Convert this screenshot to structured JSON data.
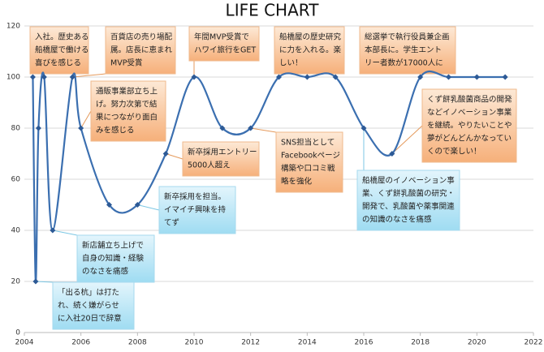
{
  "chart_data": {
    "type": "line",
    "title": "LIFE CHART",
    "x": [
      2004.3,
      2004.4,
      2004.5,
      2004.7,
      2005.0,
      2005.7,
      2006,
      2007,
      2008,
      2009,
      2010,
      2011,
      2012,
      2013,
      2014,
      2015,
      2016,
      2017,
      2018,
      2019,
      2020,
      2021
    ],
    "series": [
      {
        "color": "#3b6fb0",
        "values": [
          100,
          20,
          80,
          100,
          40,
          100,
          80,
          50,
          50,
          70,
          100,
          80,
          80,
          100,
          100,
          100,
          80,
          70,
          100,
          100,
          100,
          100
        ]
      }
    ],
    "xlim": [
      2004,
      2022
    ],
    "xticks": [
      2004,
      2006,
      2008,
      2010,
      2012,
      2014,
      2016,
      2018,
      2020,
      2022
    ],
    "ylim": [
      0,
      120
    ],
    "yticks": [
      0,
      20,
      40,
      60,
      80,
      100,
      120
    ],
    "grid": true,
    "annotations": [
      {
        "lines": [
          "入社。歴史ある",
          "船橋屋で働ける",
          "喜びを感じる"
        ]
      },
      {
        "lines": [
          "百貨店の売り場配",
          "属。店長に恵まれ",
          "MVP受賞"
        ]
      },
      {
        "lines": [
          "年間MVP受賞で",
          "ハワイ旅行をGET"
        ]
      },
      {
        "lines": [
          "船橋屋の歴史研究",
          "に力を入れる。楽",
          "しい！"
        ]
      },
      {
        "lines": [
          "総選挙で執行役員兼企画",
          "本部長に。学生エント",
          "リー者数が17000人に"
        ]
      },
      {
        "lines": [
          "通販事業部立ち上",
          "げ。努力次第で結",
          "果につながり面白",
          "みを感じる"
        ]
      },
      {
        "lines": [
          "新卒採用エントリー",
          "5000人超え"
        ]
      },
      {
        "lines": [
          "SNS担当として",
          "Facebookページ",
          "構築や口コミ戦",
          "略を強化"
        ]
      },
      {
        "lines": [
          "くず餅乳酸菌商品の開発",
          "などイノベーション事業",
          "を継続。やりたいことや",
          "夢がどんどんかなってい",
          "くので楽しい！"
        ]
      },
      {
        "lines": [
          "新卒採用を担当。",
          "イマイチ興味を持",
          "てず"
        ]
      },
      {
        "lines": [
          "新店舗立ち上げで",
          "自身の知識・経験",
          "のなさを痛感"
        ]
      },
      {
        "lines": [
          "「出る杭」は打た",
          "れ、続く嫌がらせ",
          "に入社20日で辞意"
        ]
      },
      {
        "lines": [
          "船橋屋のイノベーション事",
          "業、くず餅乳酸菌の研究・",
          "開発で、乳酸菌や薬事関連",
          "の知識のなさを痛感"
        ]
      }
    ]
  }
}
